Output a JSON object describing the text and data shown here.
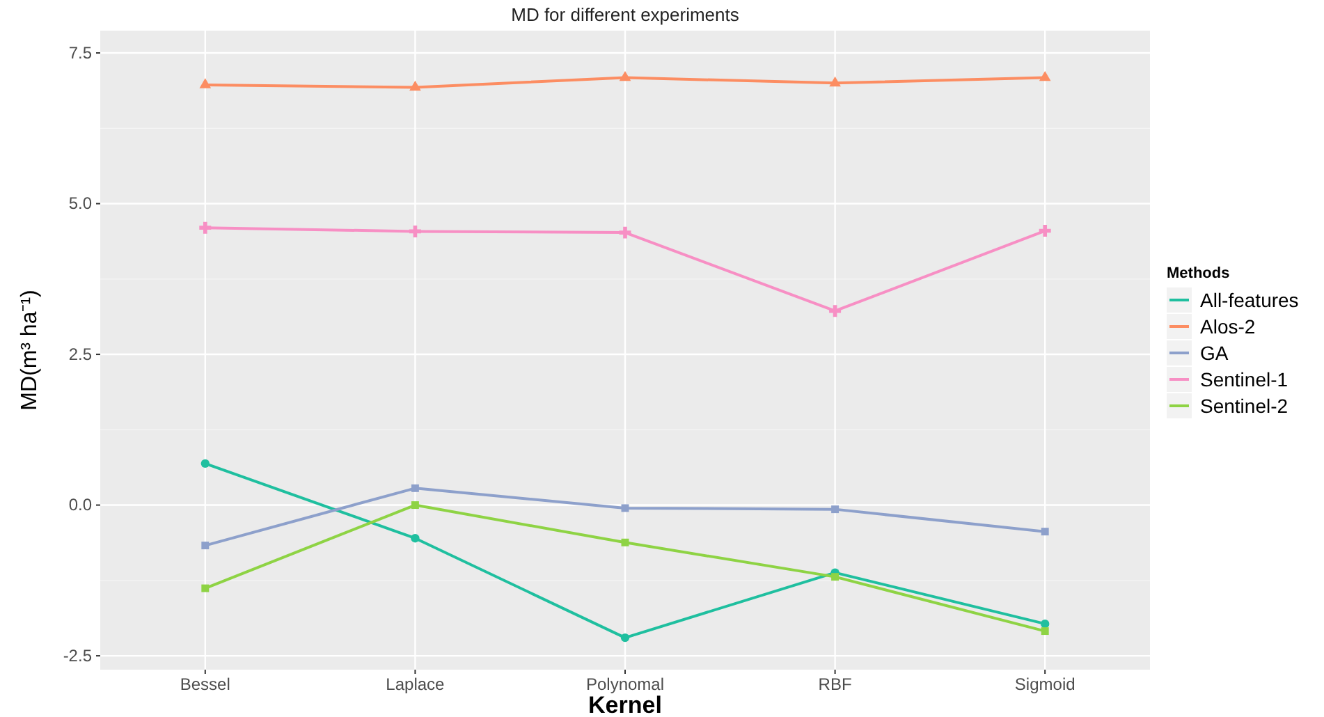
{
  "chart_data": {
    "type": "line",
    "title": "MD for different experiments",
    "xlabel": "Kernel",
    "ylabel": "MD(m³ ha⁻¹)",
    "legend_title": "Methods",
    "legend": "right",
    "grid": true,
    "categories": [
      "Bessel",
      "Laplace",
      "Polynomal",
      "RBF",
      "Sigmoid"
    ],
    "ylim": [
      -2.73,
      7.87
    ],
    "yticks": [
      {
        "value": -2.5,
        "label": "-2.5"
      },
      {
        "value": 0,
        "label": "0.0"
      },
      {
        "value": 2.5,
        "label": "2.5"
      },
      {
        "value": 5,
        "label": "5.0"
      },
      {
        "value": 7.5,
        "label": "7.5"
      }
    ],
    "series": [
      {
        "name": "All-features",
        "color": "#1fbf9f",
        "marker": "circle",
        "values": [
          0.69,
          -0.55,
          -2.2,
          -1.12,
          -1.97
        ]
      },
      {
        "name": "Alos-2",
        "color": "#fc8d62",
        "marker": "triangle",
        "values": [
          6.97,
          6.93,
          7.09,
          7.0,
          7.09
        ]
      },
      {
        "name": "GA",
        "color": "#8da0cb",
        "marker": "square",
        "values": [
          -0.67,
          0.28,
          -0.05,
          -0.07,
          -0.44
        ]
      },
      {
        "name": "Sentinel-1",
        "color": "#f78fc4",
        "marker": "cross",
        "values": [
          4.6,
          4.54,
          4.52,
          3.22,
          4.55
        ]
      },
      {
        "name": "Sentinel-2",
        "color": "#8ed344",
        "marker": "square",
        "values": [
          -1.38,
          0,
          -0.62,
          -1.19,
          -2.09
        ]
      }
    ]
  }
}
